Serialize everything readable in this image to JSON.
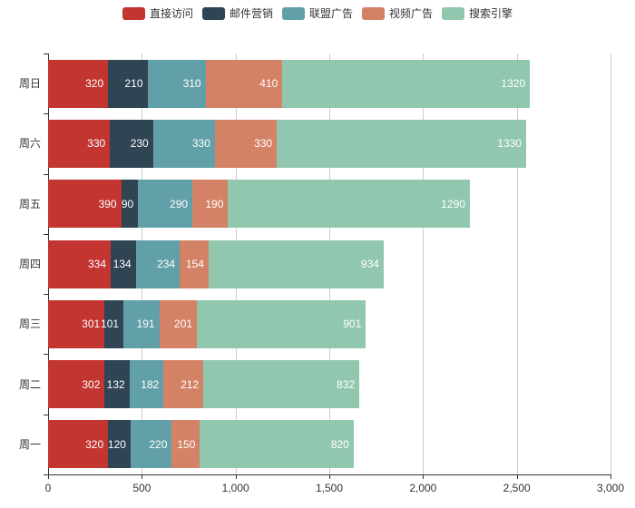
{
  "style": {
    "background": "#ffffff",
    "axis_color": "#333333",
    "grid_color": "#cccccc",
    "axis_label_color": "#333333",
    "bar_label_color": "#ffffff"
  },
  "chart_data": {
    "type": "bar",
    "orientation": "horizontal",
    "stacked": true,
    "title": "",
    "xlabel": "",
    "ylabel": "",
    "xlim": [
      0,
      3000
    ],
    "x_tick_step": 500,
    "x_tick_labels": [
      "0",
      "500",
      "1,000",
      "1,500",
      "2,000",
      "2,500",
      "3,000"
    ],
    "grid": true,
    "legend_position": "top",
    "value_label_position": "inside-right",
    "categories_top_to_bottom": [
      "周日",
      "周六",
      "周五",
      "周四",
      "周三",
      "周二",
      "周一"
    ],
    "series": [
      {
        "name": "直接访问",
        "color": "#c23531",
        "values": [
          320,
          330,
          390,
          334,
          301,
          302,
          320
        ]
      },
      {
        "name": "邮件营销",
        "color": "#2f4554",
        "values": [
          210,
          230,
          90,
          134,
          101,
          132,
          120
        ]
      },
      {
        "name": "联盟广告",
        "color": "#61a0a8",
        "values": [
          310,
          330,
          290,
          234,
          191,
          182,
          220
        ]
      },
      {
        "name": "视频广告",
        "color": "#d48265",
        "values": [
          410,
          330,
          190,
          154,
          201,
          212,
          150
        ]
      },
      {
        "name": "搜索引擎",
        "color": "#91c7ae",
        "values": [
          1320,
          1330,
          1290,
          934,
          901,
          832,
          820
        ]
      }
    ],
    "totals_top_to_bottom": [
      2570,
      2550,
      2250,
      1790,
      1695,
      1660,
      1630
    ]
  }
}
